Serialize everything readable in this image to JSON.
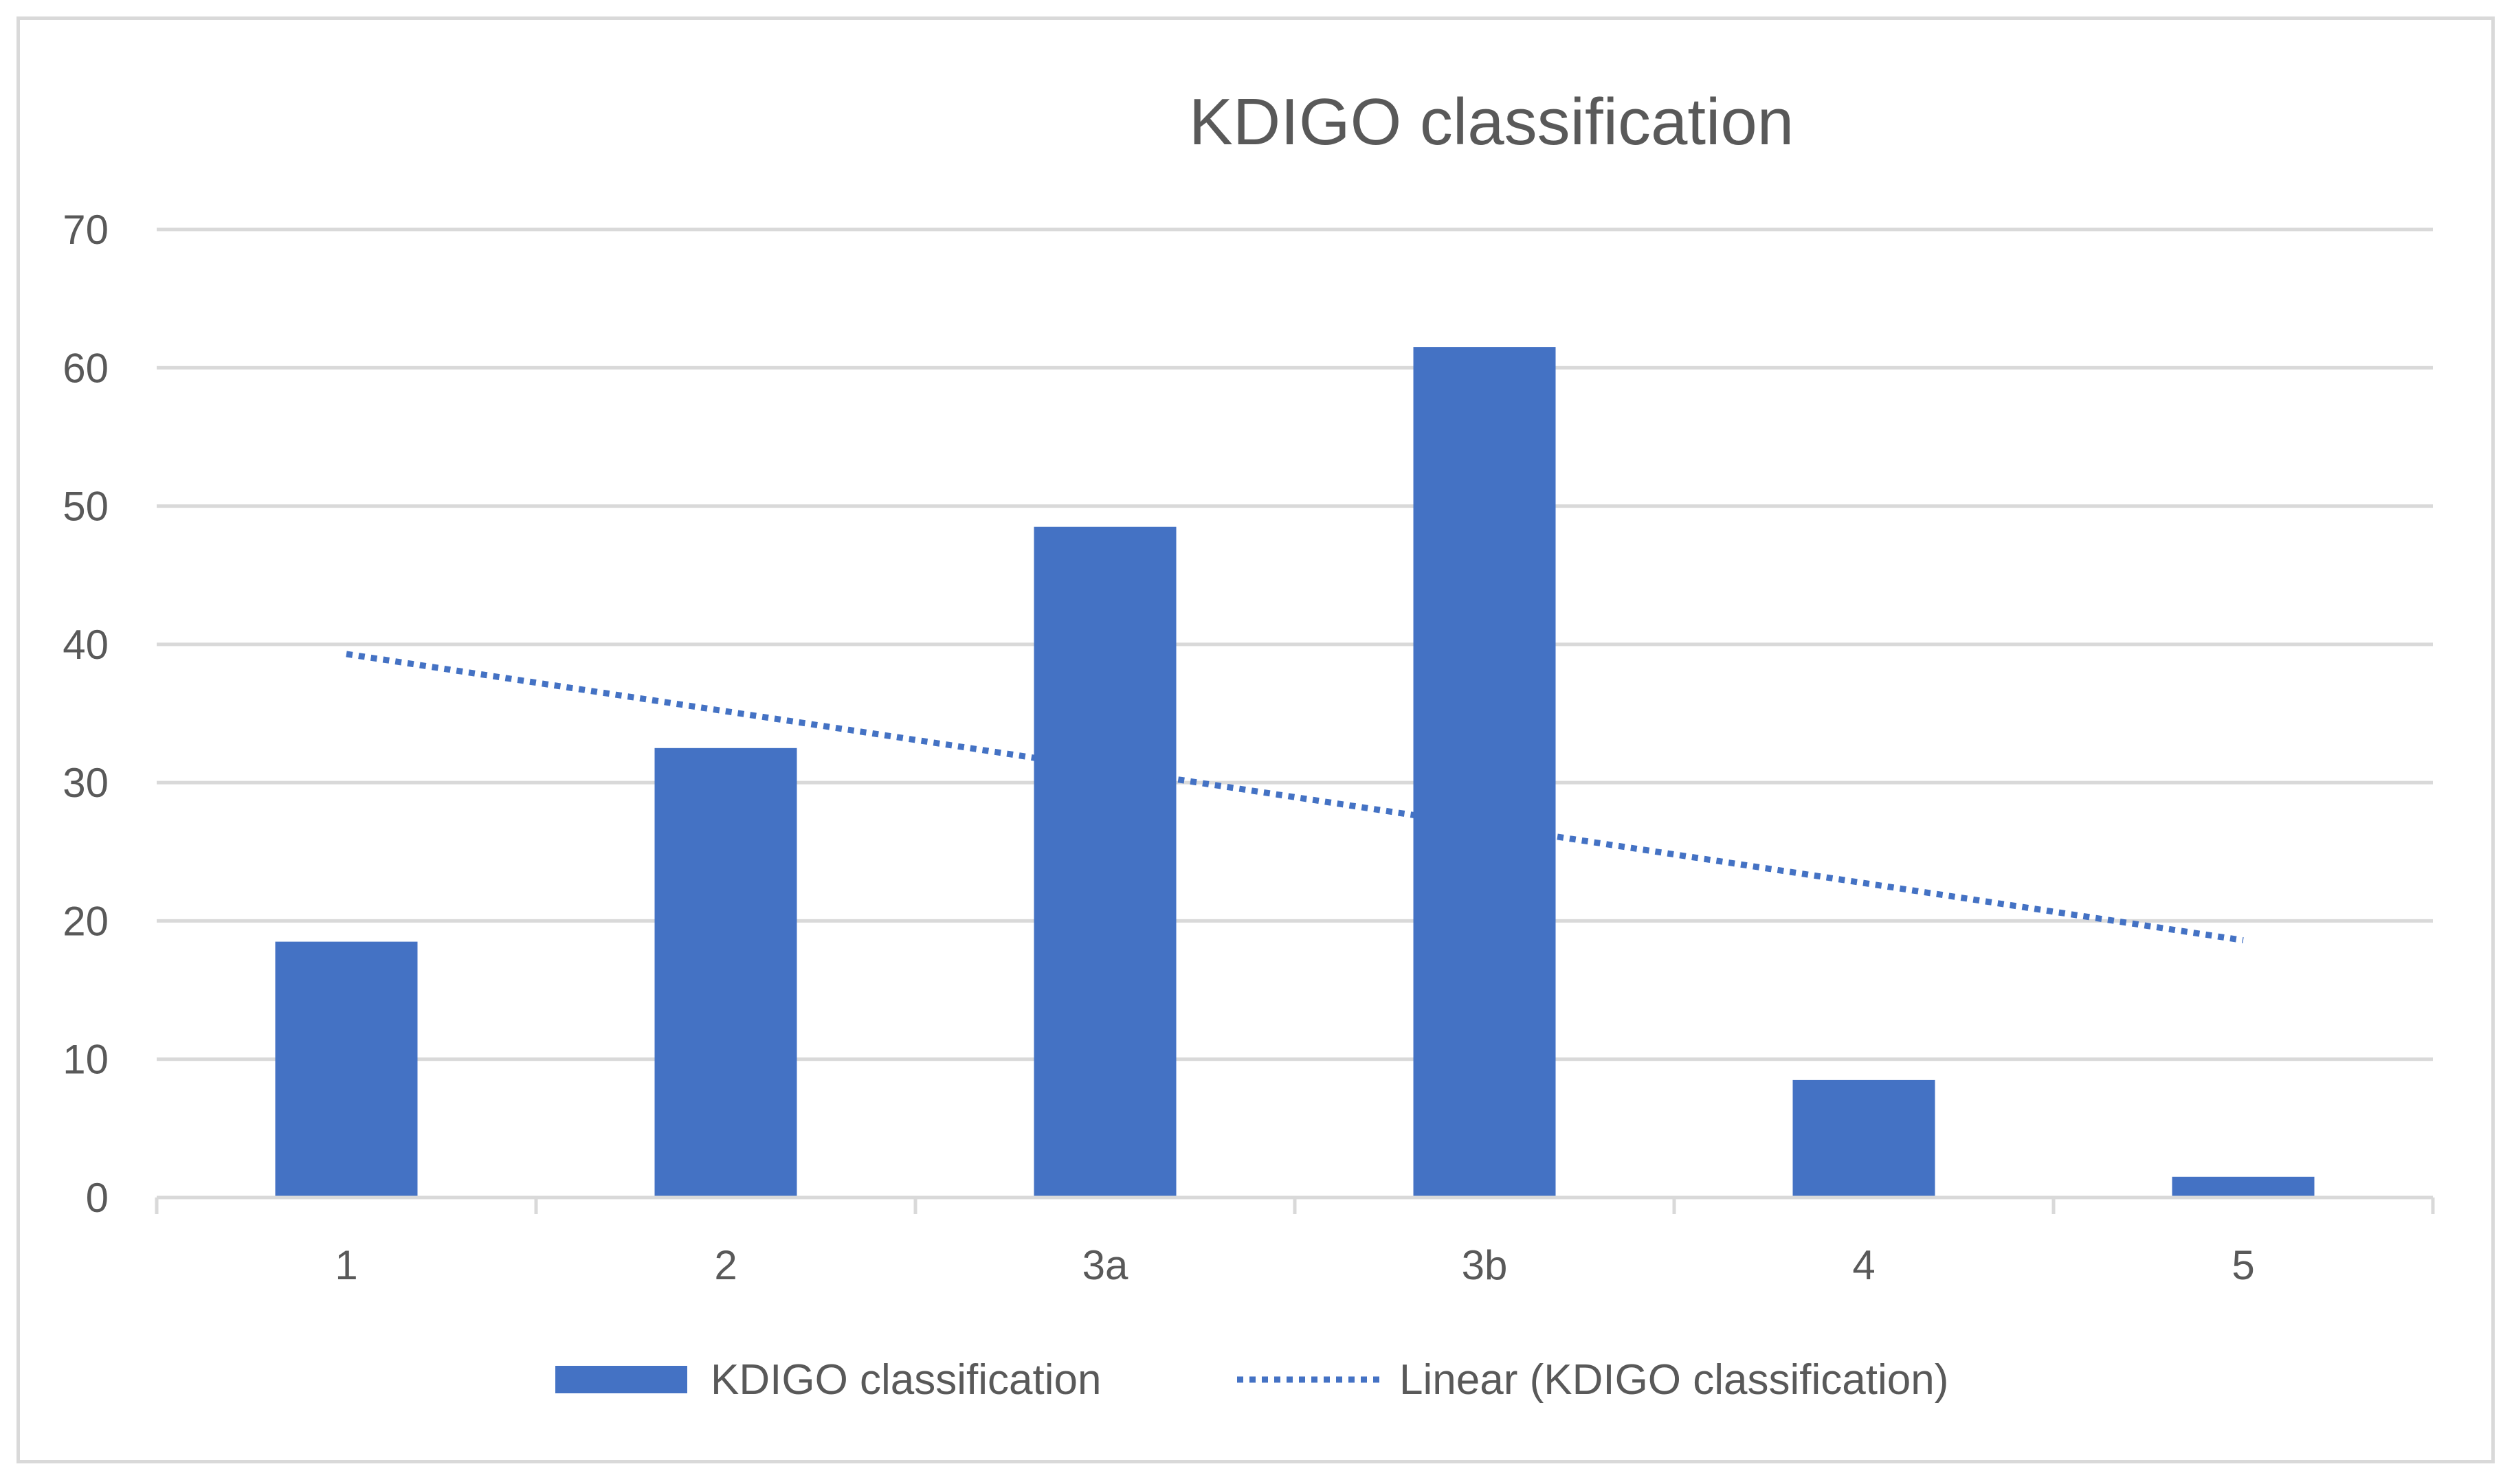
{
  "chart_data": {
    "type": "bar",
    "title": "KDIGO classification",
    "categories": [
      "1",
      "2",
      "3a",
      "3b",
      "4",
      "5"
    ],
    "series": [
      {
        "name": "KDIGO classification",
        "values": [
          18.5,
          32.5,
          48.5,
          61.5,
          8.5,
          1.5
        ]
      }
    ],
    "trendline": {
      "name": "Linear (KDIGO classification)",
      "type": "linear",
      "start": 39.3,
      "end": 18.6
    },
    "ylim": [
      0,
      70
    ],
    "yticks": [
      0,
      10,
      20,
      30,
      40,
      50,
      60,
      70
    ],
    "ytick_labels": [
      "0",
      "10",
      "20",
      "30",
      "40",
      "50",
      "60",
      "70"
    ],
    "grid": true,
    "legend_position": "bottom",
    "colors": {
      "bar": "#4472c4",
      "trend": "#4472c4",
      "grid": "#d9d9d9",
      "text": "#595959"
    }
  }
}
